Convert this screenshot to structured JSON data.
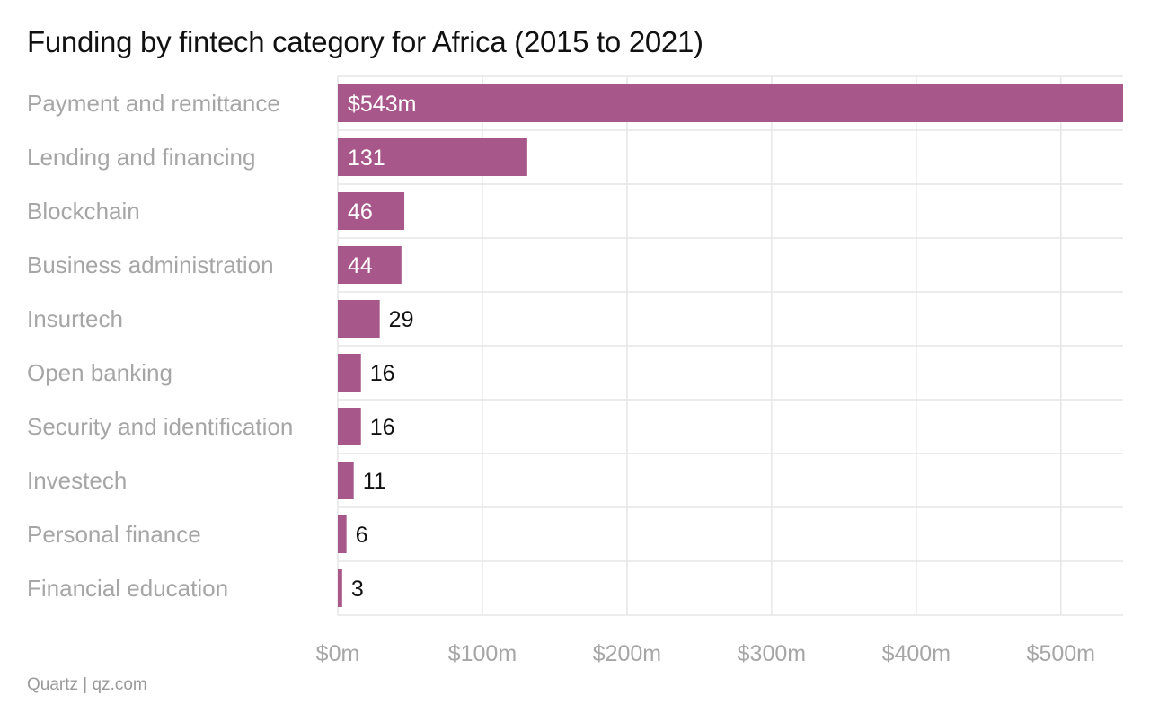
{
  "header": {
    "title": "Funding by fintech category for Africa (2015 to 2021)"
  },
  "footer": {
    "source": "Quartz | qz.com"
  },
  "colors": {
    "bar": "#a8578a",
    "grid": "#e6e6e6",
    "label_muted": "#a6a6a6",
    "label_inside": "#ffffff",
    "label_outside": "#111111"
  },
  "chart_data": {
    "type": "bar",
    "orientation": "horizontal",
    "title": "Funding by fintech category for Africa (2015 to 2021)",
    "categories": [
      "Payment and remittance",
      "Lending and financing",
      "Blockchain",
      "Business administration",
      "Insurtech",
      "Open banking",
      "Security and identification",
      "Investech",
      "Personal finance",
      "Financial education"
    ],
    "values": [
      543,
      131,
      46,
      44,
      29,
      16,
      16,
      11,
      6,
      3
    ],
    "value_labels": [
      "$543m",
      "131",
      "46",
      "44",
      "29",
      "16",
      "16",
      "11",
      "6",
      "3"
    ],
    "xlim": [
      0,
      543
    ],
    "xticks": [
      0,
      100,
      200,
      300,
      400,
      500
    ],
    "xtick_labels": [
      "$0m",
      "$100m",
      "$200m",
      "$300m",
      "$400m",
      "$500m"
    ],
    "xlabel": "",
    "ylabel": "",
    "grid": true,
    "legend": "none"
  }
}
